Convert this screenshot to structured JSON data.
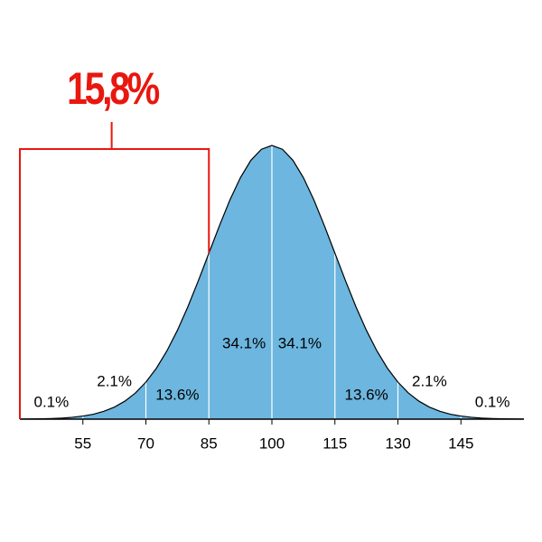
{
  "chart_data": {
    "type": "area",
    "x": [
      40,
      42.5,
      45,
      47.5,
      50,
      52.5,
      55,
      57.5,
      60,
      62.5,
      65,
      67.5,
      70,
      72.5,
      75,
      77.5,
      80,
      82.5,
      85,
      87.5,
      90,
      92.5,
      95,
      97.5,
      100,
      102.5,
      105,
      107.5,
      110,
      112.5,
      115,
      117.5,
      120,
      122.5,
      125,
      127.5,
      130,
      132.5,
      135,
      137.5,
      140,
      142.5,
      145,
      147.5,
      150,
      152.5,
      155,
      157.5,
      160
    ],
    "values": [
      0.001,
      0.002,
      0.003,
      0.006,
      0.01,
      0.018,
      0.03,
      0.048,
      0.076,
      0.117,
      0.175,
      0.254,
      0.36,
      0.495,
      0.663,
      0.863,
      1.093,
      1.347,
      1.613,
      1.879,
      2.13,
      2.347,
      2.516,
      2.623,
      2.66,
      2.623,
      2.516,
      2.347,
      2.13,
      1.879,
      1.613,
      1.347,
      1.093,
      0.863,
      0.663,
      0.495,
      0.36,
      0.254,
      0.175,
      0.117,
      0.076,
      0.048,
      0.03,
      0.018,
      0.01,
      0.006,
      0.003,
      0.002,
      0.001
    ],
    "color": "#6cb6df",
    "xlim": [
      40,
      160
    ],
    "xticks": [
      55,
      70,
      85,
      100,
      115,
      130,
      145
    ],
    "ylim": [
      0,
      2.66
    ],
    "regions": {
      "values": [
        0.1,
        2.1,
        13.6,
        34.1,
        34.1,
        13.6,
        2.1,
        0.1
      ],
      "value_labels": [
        "0.1%",
        "2.1%",
        "13.6%",
        "34.1%",
        "34.1%",
        "13.6%",
        "2.1%",
        "0.1%"
      ]
    },
    "highlight": {
      "value": 15.8,
      "label": "15,8%",
      "range": [
        40,
        85
      ],
      "color": "#e8170f"
    }
  }
}
